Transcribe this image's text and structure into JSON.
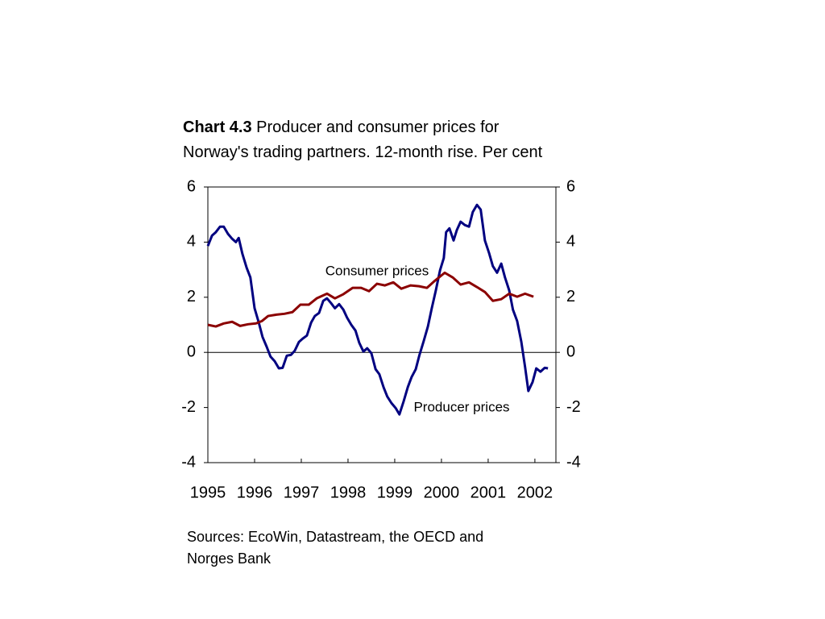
{
  "chart_data": {
    "type": "line",
    "title_prefix": "Chart 4.3",
    "title": "Producer and consumer prices for Norway's trading partners. 12-month rise. Per cent",
    "source": "Sources: EcoWin, Datastream, the OECD and Norges Bank",
    "annotations": [
      "Consumer prices",
      "Producer prices"
    ],
    "xlim": [
      1995,
      2002.45
    ],
    "xticks": [
      1995,
      1996,
      1997,
      1998,
      1999,
      2000,
      2001,
      2002
    ],
    "ylim": [
      -4,
      6
    ],
    "yticks": [
      -4,
      -2,
      0,
      2,
      4,
      6
    ],
    "series": [
      {
        "name": "Producer prices",
        "color": "#000080",
        "x": [
          1995.0,
          1995.09,
          1995.17,
          1995.26,
          1995.34,
          1995.43,
          1995.52,
          1995.6,
          1995.66,
          1995.74,
          1995.83,
          1995.91,
          1996.0,
          1996.09,
          1996.17,
          1996.26,
          1996.34,
          1996.43,
          1996.52,
          1996.6,
          1996.69,
          1996.78,
          1996.86,
          1996.95,
          1997.03,
          1997.12,
          1997.21,
          1997.29,
          1997.38,
          1997.47,
          1997.55,
          1997.64,
          1997.72,
          1997.81,
          1997.9,
          1997.98,
          1998.07,
          1998.16,
          1998.24,
          1998.33,
          1998.41,
          1998.5,
          1998.59,
          1998.67,
          1998.76,
          1998.84,
          1998.93,
          1999.02,
          1999.1,
          1999.19,
          1999.28,
          1999.36,
          1999.45,
          1999.53,
          1999.62,
          1999.71,
          1999.79,
          1999.88,
          1999.97,
          2000.05,
          2000.1,
          2000.17,
          2000.26,
          2000.33,
          2000.41,
          2000.5,
          2000.59,
          2000.67,
          2000.76,
          2000.84,
          2000.93,
          2001.02,
          2001.1,
          2001.19,
          2001.28,
          2001.36,
          2001.45,
          2001.53,
          2001.62,
          2001.71,
          2001.79,
          2001.86,
          2001.95,
          2002.03,
          2002.12,
          2002.21,
          2002.28
        ],
        "values": [
          3.86,
          4.24,
          4.36,
          4.56,
          4.56,
          4.3,
          4.12,
          4.0,
          4.15,
          3.57,
          3.07,
          2.72,
          1.6,
          1.08,
          0.56,
          0.2,
          -0.15,
          -0.32,
          -0.58,
          -0.56,
          -0.12,
          -0.09,
          0.06,
          0.38,
          0.5,
          0.61,
          1.08,
          1.32,
          1.43,
          1.87,
          1.96,
          1.78,
          1.6,
          1.75,
          1.55,
          1.26,
          1.0,
          0.79,
          0.35,
          0.03,
          0.15,
          -0.03,
          -0.61,
          -0.79,
          -1.26,
          -1.6,
          -1.84,
          -2.02,
          -2.25,
          -1.78,
          -1.26,
          -0.9,
          -0.61,
          -0.09,
          0.41,
          0.94,
          1.58,
          2.25,
          2.98,
          3.42,
          4.36,
          4.5,
          4.06,
          4.44,
          4.74,
          4.62,
          4.56,
          5.09,
          5.35,
          5.18,
          4.06,
          3.6,
          3.13,
          2.89,
          3.22,
          2.72,
          2.25,
          1.55,
          1.14,
          0.38,
          -0.53,
          -1.4,
          -1.08,
          -0.58,
          -0.7,
          -0.56,
          -0.58
        ]
      },
      {
        "name": "Consumer prices",
        "color": "#8b0000",
        "x": [
          1995.0,
          1995.17,
          1995.34,
          1995.52,
          1995.69,
          1995.86,
          1996.03,
          1996.16,
          1996.29,
          1996.47,
          1996.64,
          1996.81,
          1996.98,
          1997.16,
          1997.33,
          1997.55,
          1997.72,
          1997.9,
          1998.1,
          1998.28,
          1998.45,
          1998.62,
          1998.79,
          1998.97,
          1999.14,
          1999.34,
          1999.52,
          1999.69,
          1999.86,
          2000.07,
          2000.24,
          2000.41,
          2000.59,
          2000.76,
          2000.93,
          2001.1,
          2001.28,
          2001.45,
          2001.62,
          2001.79,
          2001.97
        ],
        "values": [
          1.0,
          0.94,
          1.05,
          1.11,
          0.96,
          1.02,
          1.05,
          1.14,
          1.32,
          1.37,
          1.4,
          1.46,
          1.73,
          1.73,
          1.96,
          2.13,
          1.96,
          2.11,
          2.34,
          2.34,
          2.22,
          2.49,
          2.43,
          2.54,
          2.31,
          2.43,
          2.4,
          2.34,
          2.6,
          2.89,
          2.72,
          2.46,
          2.54,
          2.37,
          2.19,
          1.87,
          1.93,
          2.13,
          2.02,
          2.13,
          2.02
        ]
      }
    ]
  }
}
